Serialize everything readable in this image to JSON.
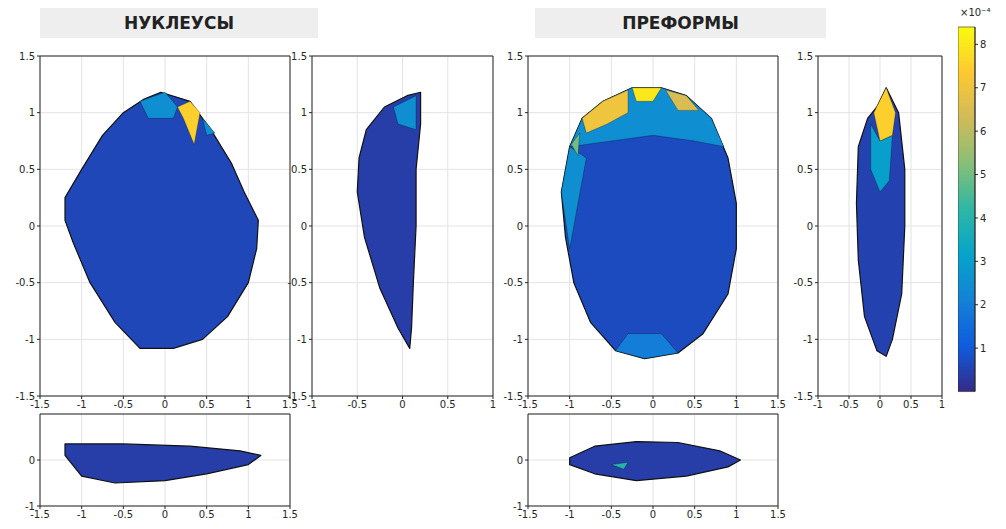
{
  "chart_data": [
    {
      "type": "mesh_projection",
      "title": "НУКЛЕУСЫ",
      "panels": [
        {
          "xlim": [
            -1.5,
            1.5
          ],
          "ylim": [
            -1.5,
            1.5
          ],
          "xticks": [
            -1.5,
            -1,
            -0.5,
            0,
            0.5,
            1,
            1.5
          ],
          "yticks": [
            -1.5,
            -1,
            -0.5,
            0,
            0.5,
            1,
            1.5
          ],
          "grid": true,
          "regions": [
            {
              "value": 0.6,
              "x": [
                -0.05,
                0.3,
                0.55,
                0.8,
                0.95,
                1.12,
                1.1,
                1.0,
                0.75,
                0.45,
                0.1,
                -0.3,
                -0.6,
                -0.9,
                -1.1,
                -1.2,
                -1.2,
                -1.0,
                -0.75,
                -0.5,
                -0.25
              ],
              "y": [
                1.18,
                1.1,
                0.85,
                0.55,
                0.3,
                0.05,
                -0.2,
                -0.5,
                -0.8,
                -1.0,
                -1.08,
                -1.08,
                -0.85,
                -0.5,
                -0.15,
                0.05,
                0.25,
                0.5,
                0.8,
                1.0,
                1.12
              ]
            },
            {
              "value": 2.5,
              "x": [
                -0.3,
                0.0,
                0.15,
                0.1,
                -0.2
              ],
              "y": [
                1.1,
                1.18,
                1.05,
                0.95,
                0.95
              ]
            },
            {
              "value": 2.5,
              "x": [
                0.45,
                0.6,
                0.5
              ],
              "y": [
                0.95,
                0.82,
                0.8
              ]
            },
            {
              "value": 7.5,
              "x": [
                0.3,
                0.42,
                0.35,
                0.22,
                0.15
              ],
              "y": [
                1.1,
                1.0,
                0.72,
                0.95,
                1.05
              ]
            }
          ]
        },
        {
          "xlim": [
            -1,
            1
          ],
          "ylim": [
            -1.5,
            1.5
          ],
          "xticks": [
            -1,
            -0.5,
            0,
            0.5,
            1
          ],
          "yticks": [
            -1.5,
            -1,
            -0.5,
            0,
            0.5,
            1,
            1.5
          ],
          "grid": true,
          "regions": [
            {
              "value": 0.4,
              "x": [
                0.05,
                0.2,
                0.2,
                0.15,
                0.15,
                0.12,
                0.1,
                0.08,
                -0.05,
                -0.25,
                -0.42,
                -0.5,
                -0.48,
                -0.4,
                -0.2
              ],
              "y": [
                1.15,
                1.18,
                0.9,
                0.5,
                0.0,
                -0.5,
                -0.9,
                -1.08,
                -0.9,
                -0.55,
                -0.1,
                0.3,
                0.6,
                0.85,
                1.05
              ]
            },
            {
              "value": 2.5,
              "x": [
                -0.1,
                0.15,
                0.15,
                -0.05
              ],
              "y": [
                1.05,
                1.15,
                0.85,
                0.9
              ]
            }
          ]
        },
        {
          "xlim": [
            -1.5,
            1.5
          ],
          "ylim": [
            -1,
            1
          ],
          "xticks": [
            -1.5,
            -1,
            -0.5,
            0,
            0.5,
            1,
            1.5
          ],
          "yticks": [
            -1,
            0
          ],
          "grid": true,
          "regions": [
            {
              "value": 0.4,
              "x": [
                -1.2,
                -0.5,
                0.3,
                0.9,
                1.15,
                1.0,
                0.5,
                0.0,
                -0.6,
                -1.0,
                -1.2
              ],
              "y": [
                0.35,
                0.35,
                0.3,
                0.2,
                0.1,
                -0.1,
                -0.3,
                -0.45,
                -0.5,
                -0.35,
                0.1
              ]
            }
          ]
        }
      ]
    },
    {
      "type": "mesh_projection",
      "title": "ПРЕФОРМЫ",
      "panels": [
        {
          "xlim": [
            -1.5,
            1.5
          ],
          "ylim": [
            -1.5,
            1.5
          ],
          "xticks": [
            -1.5,
            -1,
            -0.5,
            0,
            0.5,
            1,
            1.5
          ],
          "yticks": [
            -1.5,
            -1,
            -0.5,
            0,
            0.5,
            1,
            1.5
          ],
          "grid": true,
          "regions": [
            {
              "value": 0.7,
              "x": [
                -0.25,
                0.1,
                0.4,
                0.7,
                0.9,
                1.0,
                1.0,
                0.9,
                0.6,
                0.3,
                -0.1,
                -0.45,
                -0.75,
                -0.95,
                -1.05,
                -1.1,
                -1.0,
                -0.85,
                -0.6
              ],
              "y": [
                1.22,
                1.22,
                1.15,
                0.95,
                0.6,
                0.2,
                -0.2,
                -0.6,
                -0.95,
                -1.12,
                -1.17,
                -1.1,
                -0.85,
                -0.5,
                -0.1,
                0.3,
                0.7,
                0.95,
                1.1
              ]
            },
            {
              "value": 2.5,
              "x": [
                -1.0,
                -0.85,
                -0.6,
                -0.25,
                0.1,
                0.4,
                0.7,
                0.85,
                0.5,
                0.0,
                -0.5
              ],
              "y": [
                0.7,
                0.95,
                1.1,
                1.22,
                1.22,
                1.15,
                0.95,
                0.7,
                0.75,
                0.8,
                0.75
              ]
            },
            {
              "value": 2.5,
              "x": [
                -1.1,
                -1.0,
                -0.8,
                -0.9,
                -1.0
              ],
              "y": [
                0.3,
                0.7,
                0.6,
                0.2,
                -0.2
              ]
            },
            {
              "value": 2.0,
              "x": [
                -0.45,
                -0.1,
                0.3,
                0.1,
                -0.3
              ],
              "y": [
                -1.1,
                -1.17,
                -1.12,
                -0.95,
                -0.95
              ]
            },
            {
              "value": 7.0,
              "x": [
                -0.85,
                -0.6,
                -0.3,
                -0.3,
                -0.55,
                -0.8
              ],
              "y": [
                0.95,
                1.1,
                1.2,
                1.0,
                0.9,
                0.82
              ]
            },
            {
              "value": 8.0,
              "x": [
                -0.25,
                0.1,
                0.0,
                -0.2
              ],
              "y": [
                1.22,
                1.22,
                1.1,
                1.1
              ]
            },
            {
              "value": 6.5,
              "x": [
                0.15,
                0.4,
                0.55,
                0.3
              ],
              "y": [
                1.2,
                1.15,
                1.02,
                1.02
              ]
            },
            {
              "value": 5.0,
              "x": [
                -0.98,
                -0.88,
                -0.9
              ],
              "y": [
                0.72,
                0.82,
                0.62
              ]
            }
          ]
        },
        {
          "xlim": [
            -1,
            1
          ],
          "ylim": [
            -1.5,
            1.5
          ],
          "xticks": [
            -1,
            -0.5,
            0,
            0.5,
            1
          ],
          "yticks": [
            -1.5,
            -1,
            -0.5,
            0,
            0.5,
            1,
            1.5
          ],
          "grid": true,
          "regions": [
            {
              "value": 0.5,
              "x": [
                -0.05,
                0.1,
                0.3,
                0.4,
                0.4,
                0.35,
                0.2,
                0.1,
                -0.05,
                -0.25,
                -0.35,
                -0.38,
                -0.35,
                -0.2
              ],
              "y": [
                1.05,
                1.22,
                1.0,
                0.5,
                0.0,
                -0.6,
                -1.0,
                -1.15,
                -1.1,
                -0.8,
                -0.3,
                0.2,
                0.7,
                0.95
              ]
            },
            {
              "value": 3.0,
              "x": [
                -0.15,
                0.0,
                0.2,
                0.15,
                0.0,
                -0.15
              ],
              "y": [
                0.9,
                0.75,
                0.8,
                0.4,
                0.3,
                0.5
              ]
            },
            {
              "value": 7.5,
              "x": [
                -0.1,
                0.1,
                0.25,
                0.2,
                0.0
              ],
              "y": [
                1.0,
                1.22,
                1.0,
                0.8,
                0.75
              ]
            }
          ]
        },
        {
          "xlim": [
            -1.5,
            1.5
          ],
          "ylim": [
            -1,
            1
          ],
          "xticks": [
            -1.5,
            -1,
            -0.5,
            0,
            0.5,
            1,
            1.5
          ],
          "yticks": [
            -1,
            0
          ],
          "grid": true,
          "regions": [
            {
              "value": 0.4,
              "x": [
                -1.0,
                -0.7,
                -0.2,
                0.3,
                0.8,
                1.05,
                0.9,
                0.4,
                -0.2,
                -0.7,
                -1.0
              ],
              "y": [
                0.05,
                0.3,
                0.4,
                0.38,
                0.2,
                0.0,
                -0.15,
                -0.35,
                -0.45,
                -0.3,
                -0.1
              ]
            },
            {
              "value": 4.0,
              "x": [
                -0.5,
                -0.3,
                -0.35
              ],
              "y": [
                -0.1,
                -0.05,
                -0.2
              ]
            }
          ]
        }
      ]
    }
  ],
  "colorbar": {
    "range": [
      0,
      8.4
    ],
    "ticks": [
      1,
      2,
      3,
      4,
      5,
      6,
      7,
      8
    ],
    "label": "×10⁻⁴"
  }
}
